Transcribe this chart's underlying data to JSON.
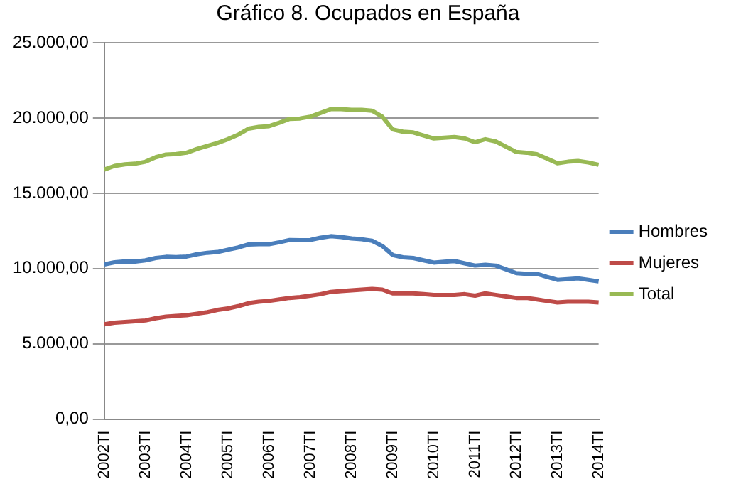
{
  "chart_data": {
    "type": "line",
    "title": "Gráfico 8. Ocupados en España",
    "categories": [
      "2002TI",
      null,
      null,
      null,
      "2003TI",
      null,
      null,
      null,
      "2004TI",
      null,
      null,
      null,
      "2005TI",
      null,
      null,
      null,
      "2006TI",
      null,
      null,
      null,
      "2007TI",
      null,
      null,
      null,
      "2008TI",
      null,
      null,
      null,
      "2009TI",
      null,
      null,
      null,
      "2010TI",
      null,
      null,
      null,
      "2011TI",
      null,
      null,
      null,
      "2012TI",
      null,
      null,
      null,
      "2013TI",
      null,
      null,
      null,
      "2014TI"
    ],
    "series": [
      {
        "name": "Hombres",
        "color": "#4a7ebb",
        "values": [
          10280,
          10420,
          10480,
          10470,
          10550,
          10700,
          10780,
          10760,
          10800,
          10950,
          11050,
          11100,
          11250,
          11400,
          11600,
          11620,
          11620,
          11750,
          11900,
          11880,
          11900,
          12050,
          12150,
          12100,
          12000,
          11950,
          11850,
          11500,
          10900,
          10750,
          10700,
          10550,
          10400,
          10450,
          10500,
          10350,
          10200,
          10250,
          10200,
          9950,
          9700,
          9650,
          9650,
          9450,
          9250,
          9300,
          9350,
          9250,
          9150
        ]
      },
      {
        "name": "Mujeres",
        "color": "#be4b48",
        "values": [
          6300,
          6400,
          6450,
          6500,
          6550,
          6700,
          6800,
          6850,
          6900,
          7000,
          7100,
          7250,
          7350,
          7500,
          7700,
          7800,
          7850,
          7950,
          8050,
          8100,
          8200,
          8300,
          8450,
          8500,
          8550,
          8600,
          8650,
          8600,
          8350,
          8350,
          8350,
          8300,
          8250,
          8250,
          8250,
          8300,
          8200,
          8350,
          8250,
          8150,
          8050,
          8050,
          7950,
          7850,
          7750,
          7800,
          7800,
          7800,
          7750
        ]
      },
      {
        "name": "Total",
        "color": "#98b954",
        "values": [
          16580,
          16820,
          16930,
          16970,
          17100,
          17400,
          17580,
          17610,
          17700,
          17950,
          18150,
          18350,
          18600,
          18900,
          19300,
          19420,
          19470,
          19700,
          19950,
          19980,
          20100,
          20350,
          20600,
          20600,
          20550,
          20550,
          20500,
          20100,
          19250,
          19100,
          19050,
          18850,
          18650,
          18700,
          18750,
          18650,
          18400,
          18600,
          18450,
          18100,
          17750,
          17700,
          17600,
          17300,
          17000,
          17100,
          17150,
          17050,
          16900
        ]
      }
    ],
    "ylim": [
      0,
      25000
    ],
    "yticks": [
      {
        "value": 0,
        "label": "0,00"
      },
      {
        "value": 5000,
        "label": "5.000,00"
      },
      {
        "value": 10000,
        "label": "10.000,00"
      },
      {
        "value": 15000,
        "label": "15.000,00"
      },
      {
        "value": 20000,
        "label": "20.000,00"
      },
      {
        "value": 25000,
        "label": "25.000,00"
      }
    ],
    "grid": "y",
    "legend": "right",
    "marker": "none",
    "line_style": "solid"
  }
}
